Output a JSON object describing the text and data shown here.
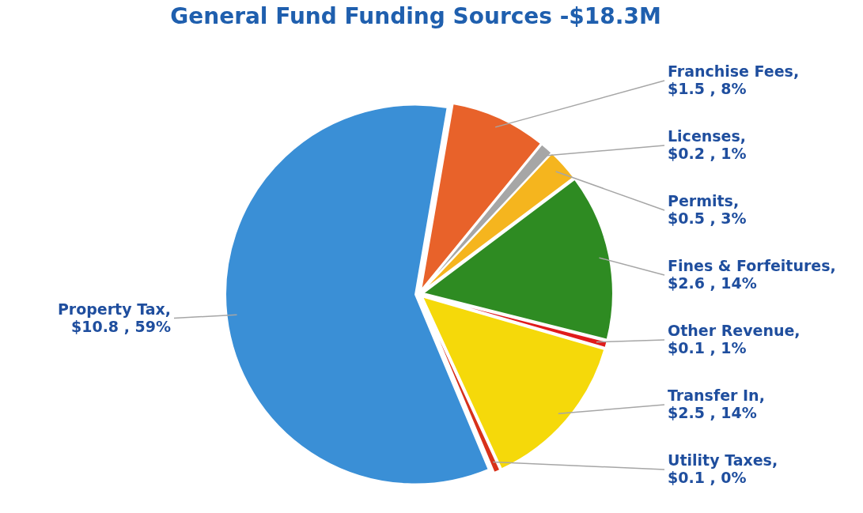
{
  "chart_data": {
    "type": "pie",
    "title": "General Fund Funding Sources -$18.3M",
    "categories": [
      "Franchise Fees",
      "Licenses",
      "Permits",
      "Fines & Forfeitures",
      "Other Revenue",
      "Transfer In",
      "Utility Taxes",
      "Property Tax"
    ],
    "values": [
      1.5,
      0.2,
      0.5,
      2.6,
      0.1,
      2.5,
      0.1,
      10.8
    ],
    "value_labels": [
      ", $1.5 , 8%",
      ", $0.2 , 1%",
      ", $0.5 , 3%",
      ", $2.6 , 14%",
      ", $0.1 , 1%",
      ", $2.5 , 14%",
      ", $0.1 , 0%",
      ", $10.8 , 59%"
    ],
    "colors": [
      "#e8622a",
      "#a6a6a6",
      "#f5b51e",
      "#2e8b22",
      "#e01b1b",
      "#f5d90a",
      "#d8311a",
      "#3a8fd6"
    ],
    "legend": false
  }
}
